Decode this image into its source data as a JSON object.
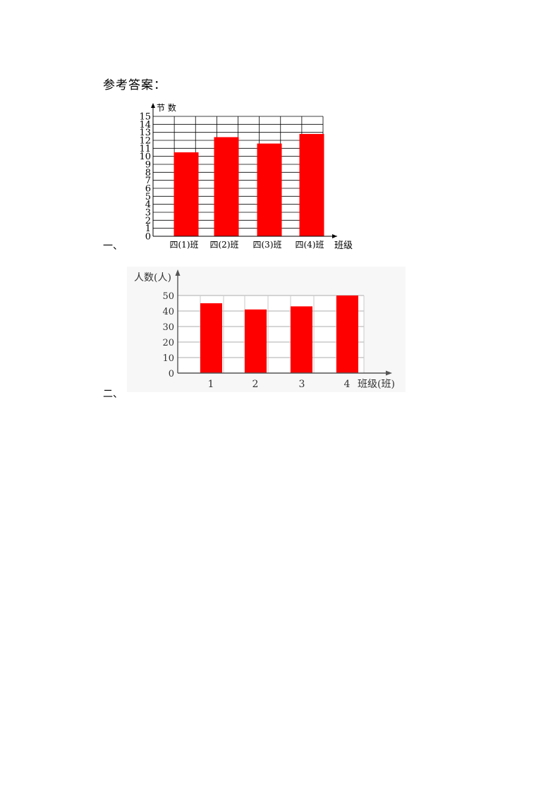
{
  "heading": "参考答案：",
  "questions": [
    "一、",
    "二、"
  ],
  "chart_data": [
    {
      "type": "bar",
      "ylabel": "节 数",
      "xlabel": "班级",
      "categories": [
        "四(1)班",
        "四(2)班",
        "四(3)班",
        "四(4)班"
      ],
      "values": [
        10.5,
        12.4,
        11.6,
        12.8
      ],
      "ylim": [
        0,
        15
      ],
      "yticks": [
        "0",
        "1",
        "2",
        "3",
        "4",
        "5",
        "6",
        "7",
        "8",
        "9",
        "10",
        "11",
        "12",
        "13",
        "14",
        "15"
      ],
      "bar_color": "#ff0000",
      "grid": true
    },
    {
      "type": "bar",
      "ylabel": "人数(人)",
      "xlabel": "班级(班)",
      "categories": [
        "1",
        "2",
        "3",
        "4"
      ],
      "values": [
        45,
        41,
        43,
        50
      ],
      "ylim": [
        0,
        50
      ],
      "yticks": [
        "0",
        "10",
        "20",
        "30",
        "40",
        "50"
      ],
      "bar_color": "#ff0000",
      "grid": true
    }
  ]
}
